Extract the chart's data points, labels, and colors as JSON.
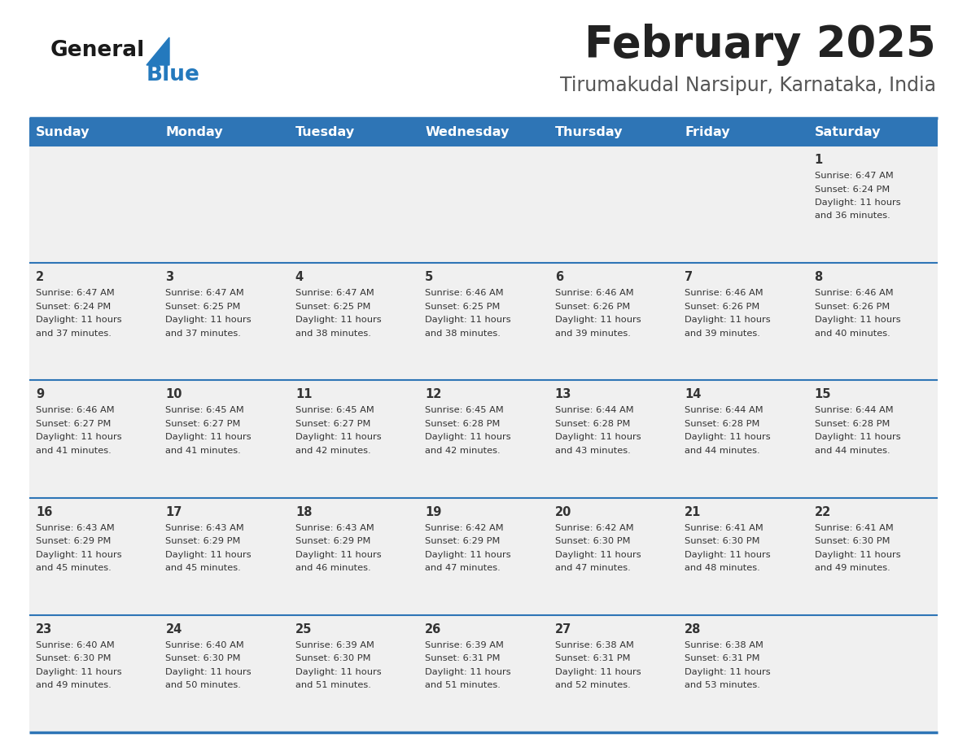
{
  "title": "February 2025",
  "subtitle": "Tirumakudal Narsipur, Karnataka, India",
  "days_of_week": [
    "Sunday",
    "Monday",
    "Tuesday",
    "Wednesday",
    "Thursday",
    "Friday",
    "Saturday"
  ],
  "header_color": "#2E75B6",
  "header_text_color": "#FFFFFF",
  "cell_bg_color": "#F0F0F0",
  "border_color": "#2E75B6",
  "text_color": "#333333",
  "title_color": "#222222",
  "subtitle_color": "#555555",
  "logo_general_color": "#1a1a1a",
  "logo_blue_color": "#2479BD",
  "calendar_data": [
    [
      {
        "day": null,
        "sunrise": null,
        "sunset": null,
        "daylight": null
      },
      {
        "day": null,
        "sunrise": null,
        "sunset": null,
        "daylight": null
      },
      {
        "day": null,
        "sunrise": null,
        "sunset": null,
        "daylight": null
      },
      {
        "day": null,
        "sunrise": null,
        "sunset": null,
        "daylight": null
      },
      {
        "day": null,
        "sunrise": null,
        "sunset": null,
        "daylight": null
      },
      {
        "day": null,
        "sunrise": null,
        "sunset": null,
        "daylight": null
      },
      {
        "day": 1,
        "sunrise": "6:47 AM",
        "sunset": "6:24 PM",
        "daylight": "11 hours and 36 minutes."
      }
    ],
    [
      {
        "day": 2,
        "sunrise": "6:47 AM",
        "sunset": "6:24 PM",
        "daylight": "11 hours and 37 minutes."
      },
      {
        "day": 3,
        "sunrise": "6:47 AM",
        "sunset": "6:25 PM",
        "daylight": "11 hours and 37 minutes."
      },
      {
        "day": 4,
        "sunrise": "6:47 AM",
        "sunset": "6:25 PM",
        "daylight": "11 hours and 38 minutes."
      },
      {
        "day": 5,
        "sunrise": "6:46 AM",
        "sunset": "6:25 PM",
        "daylight": "11 hours and 38 minutes."
      },
      {
        "day": 6,
        "sunrise": "6:46 AM",
        "sunset": "6:26 PM",
        "daylight": "11 hours and 39 minutes."
      },
      {
        "day": 7,
        "sunrise": "6:46 AM",
        "sunset": "6:26 PM",
        "daylight": "11 hours and 39 minutes."
      },
      {
        "day": 8,
        "sunrise": "6:46 AM",
        "sunset": "6:26 PM",
        "daylight": "11 hours and 40 minutes."
      }
    ],
    [
      {
        "day": 9,
        "sunrise": "6:46 AM",
        "sunset": "6:27 PM",
        "daylight": "11 hours and 41 minutes."
      },
      {
        "day": 10,
        "sunrise": "6:45 AM",
        "sunset": "6:27 PM",
        "daylight": "11 hours and 41 minutes."
      },
      {
        "day": 11,
        "sunrise": "6:45 AM",
        "sunset": "6:27 PM",
        "daylight": "11 hours and 42 minutes."
      },
      {
        "day": 12,
        "sunrise": "6:45 AM",
        "sunset": "6:28 PM",
        "daylight": "11 hours and 42 minutes."
      },
      {
        "day": 13,
        "sunrise": "6:44 AM",
        "sunset": "6:28 PM",
        "daylight": "11 hours and 43 minutes."
      },
      {
        "day": 14,
        "sunrise": "6:44 AM",
        "sunset": "6:28 PM",
        "daylight": "11 hours and 44 minutes."
      },
      {
        "day": 15,
        "sunrise": "6:44 AM",
        "sunset": "6:28 PM",
        "daylight": "11 hours and 44 minutes."
      }
    ],
    [
      {
        "day": 16,
        "sunrise": "6:43 AM",
        "sunset": "6:29 PM",
        "daylight": "11 hours and 45 minutes."
      },
      {
        "day": 17,
        "sunrise": "6:43 AM",
        "sunset": "6:29 PM",
        "daylight": "11 hours and 45 minutes."
      },
      {
        "day": 18,
        "sunrise": "6:43 AM",
        "sunset": "6:29 PM",
        "daylight": "11 hours and 46 minutes."
      },
      {
        "day": 19,
        "sunrise": "6:42 AM",
        "sunset": "6:29 PM",
        "daylight": "11 hours and 47 minutes."
      },
      {
        "day": 20,
        "sunrise": "6:42 AM",
        "sunset": "6:30 PM",
        "daylight": "11 hours and 47 minutes."
      },
      {
        "day": 21,
        "sunrise": "6:41 AM",
        "sunset": "6:30 PM",
        "daylight": "11 hours and 48 minutes."
      },
      {
        "day": 22,
        "sunrise": "6:41 AM",
        "sunset": "6:30 PM",
        "daylight": "11 hours and 49 minutes."
      }
    ],
    [
      {
        "day": 23,
        "sunrise": "6:40 AM",
        "sunset": "6:30 PM",
        "daylight": "11 hours and 49 minutes."
      },
      {
        "day": 24,
        "sunrise": "6:40 AM",
        "sunset": "6:30 PM",
        "daylight": "11 hours and 50 minutes."
      },
      {
        "day": 25,
        "sunrise": "6:39 AM",
        "sunset": "6:30 PM",
        "daylight": "11 hours and 51 minutes."
      },
      {
        "day": 26,
        "sunrise": "6:39 AM",
        "sunset": "6:31 PM",
        "daylight": "11 hours and 51 minutes."
      },
      {
        "day": 27,
        "sunrise": "6:38 AM",
        "sunset": "6:31 PM",
        "daylight": "11 hours and 52 minutes."
      },
      {
        "day": 28,
        "sunrise": "6:38 AM",
        "sunset": "6:31 PM",
        "daylight": "11 hours and 53 minutes."
      },
      {
        "day": null,
        "sunrise": null,
        "sunset": null,
        "daylight": null
      }
    ]
  ]
}
